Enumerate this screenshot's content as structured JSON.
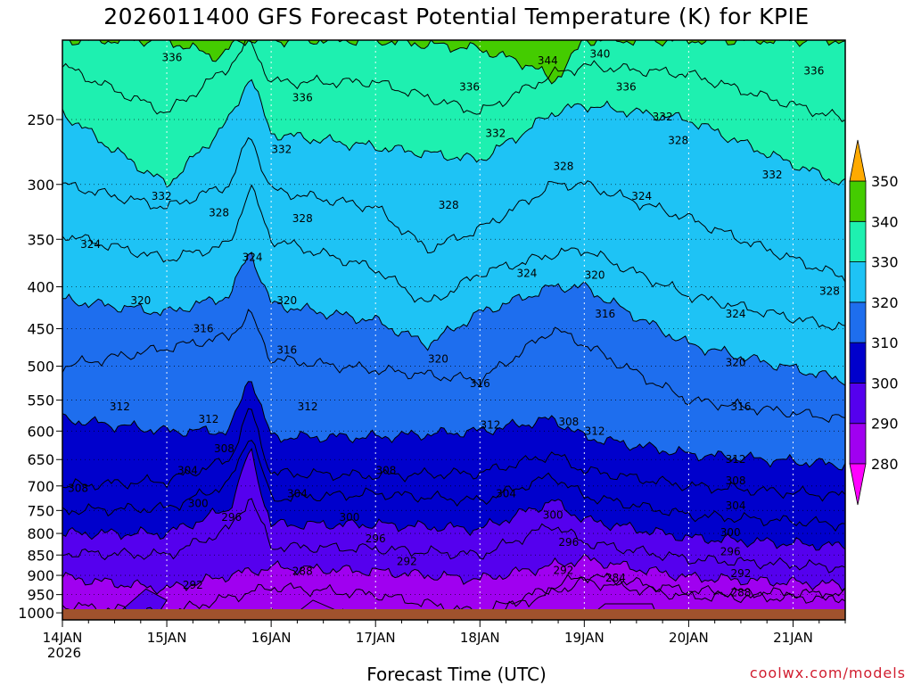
{
  "chart_data": {
    "type": "contour",
    "title": "2026011400 GFS Forecast Potential Temperature (K) for KPIE",
    "xlabel": "Forecast Time (UTC)",
    "ylabel": "",
    "credit": "coolwx.com/models",
    "x_ticks": [
      {
        "label": "14JAN",
        "sub": "2026",
        "day": 0
      },
      {
        "label": "15JAN",
        "sub": "",
        "day": 1
      },
      {
        "label": "16JAN",
        "sub": "",
        "day": 2
      },
      {
        "label": "17JAN",
        "sub": "",
        "day": 3
      },
      {
        "label": "18JAN",
        "sub": "",
        "day": 4
      },
      {
        "label": "19JAN",
        "sub": "",
        "day": 5
      },
      {
        "label": "20JAN",
        "sub": "",
        "day": 6
      },
      {
        "label": "21JAN",
        "sub": "",
        "day": 7
      }
    ],
    "xlim_days": [
      0,
      7.5
    ],
    "y_ticks": [
      250,
      300,
      350,
      400,
      450,
      500,
      550,
      600,
      650,
      700,
      750,
      800,
      850,
      900,
      950,
      1000
    ],
    "ylim_hpa": [
      200,
      1020
    ],
    "y_scale": "log-pressure",
    "grid": true,
    "colorbar": {
      "levels": [
        280,
        290,
        300,
        310,
        320,
        330,
        340,
        350
      ],
      "colors": [
        "#ff00ff",
        "#a000f0",
        "#5500ee",
        "#0000cc",
        "#1e6eee",
        "#1ec3f5",
        "#1ef0b0",
        "#44cc00",
        "#ffff00",
        "#ffaa00"
      ],
      "extend": "both"
    },
    "contour_interval": 4,
    "surface_color": "#a0522d",
    "isentropes": [
      {
        "theta": 284,
        "day": [
          0,
          1,
          2,
          3,
          4,
          5,
          6,
          7.5
        ],
        "hpa": [
          1005,
          1010,
          1005,
          1010,
          1010,
          915,
          955,
          960
        ]
      },
      {
        "theta": 288,
        "day": [
          0,
          1,
          2,
          3,
          4,
          5,
          6,
          7.5
        ],
        "hpa": [
          980,
          1000,
          930,
          950,
          1000,
          900,
          940,
          950
        ]
      },
      {
        "theta": 292,
        "day": [
          0,
          1,
          1.6,
          2,
          3,
          4,
          5,
          6,
          7.5
        ],
        "hpa": [
          905,
          935,
          900,
          880,
          890,
          910,
          860,
          905,
          925
        ]
      },
      {
        "theta": 296,
        "day": [
          0,
          1,
          1.6,
          1.8,
          2,
          3,
          4,
          4.7,
          5,
          6,
          7.5
        ],
        "hpa": [
          845,
          850,
          790,
          720,
          830,
          835,
          850,
          780,
          820,
          860,
          880
        ]
      },
      {
        "theta": 300,
        "day": [
          0,
          1,
          1.6,
          1.8,
          2,
          3,
          4,
          4.7,
          5,
          6,
          7.5
        ],
        "hpa": [
          800,
          800,
          745,
          630,
          780,
          780,
          790,
          730,
          770,
          810,
          830
        ]
      },
      {
        "theta": 304,
        "day": [
          0,
          1,
          1.6,
          1.8,
          2,
          3,
          4,
          4.7,
          5,
          6,
          7.5
        ],
        "hpa": [
          750,
          745,
          695,
          600,
          725,
          715,
          730,
          680,
          720,
          760,
          780
        ]
      },
      {
        "theta": 308,
        "day": [
          0,
          1,
          1.6,
          1.8,
          2,
          3,
          4,
          4.7,
          5,
          6,
          7.5
        ],
        "hpa": [
          700,
          690,
          650,
          560,
          675,
          680,
          675,
          640,
          670,
          700,
          720
        ]
      },
      {
        "theta": 312,
        "day": [
          0,
          1,
          1.6,
          1.8,
          2,
          3,
          4,
          4.7,
          5,
          6,
          7.5
        ],
        "hpa": [
          580,
          600,
          600,
          510,
          610,
          610,
          600,
          580,
          610,
          640,
          660
        ]
      },
      {
        "theta": 316,
        "day": [
          0,
          1,
          1.6,
          1.8,
          2,
          3,
          4,
          4.7,
          5,
          6,
          7.5
        ],
        "hpa": [
          500,
          475,
          460,
          430,
          490,
          505,
          520,
          450,
          470,
          550,
          580
        ]
      },
      {
        "theta": 320,
        "day": [
          0,
          1,
          1.6,
          1.8,
          2,
          3,
          3.5,
          4,
          4.7,
          5,
          6,
          7.5
        ],
        "hpa": [
          415,
          430,
          410,
          360,
          420,
          440,
          470,
          430,
          400,
          400,
          470,
          520
        ]
      },
      {
        "theta": 324,
        "day": [
          0,
          1,
          1.6,
          1.8,
          2,
          3,
          3.5,
          4,
          4.7,
          5,
          6,
          7.5
        ],
        "hpa": [
          345,
          370,
          355,
          300,
          350,
          380,
          420,
          385,
          365,
          360,
          410,
          450
        ]
      },
      {
        "theta": 328,
        "day": [
          0,
          1,
          1.6,
          1.8,
          2,
          3,
          3.5,
          4,
          4.7,
          5,
          6,
          7.5
        ],
        "hpa": [
          300,
          320,
          300,
          260,
          305,
          320,
          360,
          340,
          300,
          300,
          330,
          390
        ]
      },
      {
        "theta": 332,
        "day": [
          0,
          1,
          1.6,
          1.8,
          2,
          3,
          4,
          4.7,
          5,
          6,
          7.5
        ],
        "hpa": [
          245,
          300,
          250,
          220,
          260,
          270,
          280,
          245,
          240,
          250,
          300
        ]
      },
      {
        "theta": 336,
        "day": [
          0,
          1,
          1.6,
          1.8,
          2,
          3,
          4,
          4.7,
          5,
          6,
          7.5
        ],
        "hpa": [
          215,
          245,
          215,
          200,
          225,
          225,
          245,
          220,
          215,
          220,
          250
        ]
      },
      {
        "theta": 340,
        "day": [
          0,
          1,
          1.5,
          1.7,
          1.8,
          2,
          3,
          4,
          4.5,
          4.7,
          5,
          6,
          7.5
        ],
        "hpa": [
          200,
          200,
          210,
          200,
          200,
          200,
          200,
          205,
          215,
          225,
          200,
          200,
          200
        ]
      }
    ],
    "contour_labels": [
      {
        "text": "336",
        "day": 1.05,
        "hpa": 210
      },
      {
        "text": "336",
        "day": 2.3,
        "hpa": 235
      },
      {
        "text": "336",
        "day": 3.9,
        "hpa": 228
      },
      {
        "text": "344",
        "day": 4.65,
        "hpa": 212
      },
      {
        "text": "340",
        "day": 5.15,
        "hpa": 208
      },
      {
        "text": "336",
        "day": 5.4,
        "hpa": 228
      },
      {
        "text": "336",
        "day": 7.2,
        "hpa": 218
      },
      {
        "text": "332",
        "day": 2.1,
        "hpa": 272
      },
      {
        "text": "332",
        "day": 4.15,
        "hpa": 260
      },
      {
        "text": "332",
        "day": 5.75,
        "hpa": 248
      },
      {
        "text": "328",
        "day": 5.9,
        "hpa": 265
      },
      {
        "text": "328",
        "day": 4.8,
        "hpa": 285
      },
      {
        "text": "332",
        "day": 0.95,
        "hpa": 310
      },
      {
        "text": "332",
        "day": 6.8,
        "hpa": 292
      },
      {
        "text": "328",
        "day": 1.5,
        "hpa": 325
      },
      {
        "text": "328",
        "day": 2.3,
        "hpa": 330
      },
      {
        "text": "328",
        "day": 3.7,
        "hpa": 318
      },
      {
        "text": "324",
        "day": 5.55,
        "hpa": 310
      },
      {
        "text": "324",
        "day": 0.27,
        "hpa": 355
      },
      {
        "text": "324",
        "day": 1.82,
        "hpa": 368
      },
      {
        "text": "324",
        "day": 4.45,
        "hpa": 385
      },
      {
        "text": "320",
        "day": 5.1,
        "hpa": 387
      },
      {
        "text": "328",
        "day": 7.35,
        "hpa": 405
      },
      {
        "text": "320",
        "day": 0.75,
        "hpa": 416
      },
      {
        "text": "320",
        "day": 2.15,
        "hpa": 416
      },
      {
        "text": "316",
        "day": 1.35,
        "hpa": 450
      },
      {
        "text": "316",
        "day": 5.2,
        "hpa": 432
      },
      {
        "text": "324",
        "day": 6.45,
        "hpa": 432
      },
      {
        "text": "316",
        "day": 2.15,
        "hpa": 478
      },
      {
        "text": "320",
        "day": 3.6,
        "hpa": 490
      },
      {
        "text": "320",
        "day": 6.45,
        "hpa": 495
      },
      {
        "text": "316",
        "day": 4.0,
        "hpa": 525
      },
      {
        "text": "312",
        "day": 0.55,
        "hpa": 560
      },
      {
        "text": "312",
        "day": 1.4,
        "hpa": 580
      },
      {
        "text": "312",
        "day": 2.35,
        "hpa": 560
      },
      {
        "text": "312",
        "day": 4.1,
        "hpa": 590
      },
      {
        "text": "308",
        "day": 4.85,
        "hpa": 585
      },
      {
        "text": "312",
        "day": 5.1,
        "hpa": 600
      },
      {
        "text": "316",
        "day": 6.5,
        "hpa": 560
      },
      {
        "text": "308",
        "day": 1.55,
        "hpa": 630
      },
      {
        "text": "312",
        "day": 6.45,
        "hpa": 650
      },
      {
        "text": "304",
        "day": 1.2,
        "hpa": 670
      },
      {
        "text": "308",
        "day": 3.1,
        "hpa": 670
      },
      {
        "text": "308",
        "day": 0.15,
        "hpa": 705
      },
      {
        "text": "308",
        "day": 6.45,
        "hpa": 690
      },
      {
        "text": "304",
        "day": 2.25,
        "hpa": 715
      },
      {
        "text": "304",
        "day": 4.25,
        "hpa": 715
      },
      {
        "text": "300",
        "day": 1.3,
        "hpa": 735
      },
      {
        "text": "304",
        "day": 6.45,
        "hpa": 740
      },
      {
        "text": "296",
        "day": 1.62,
        "hpa": 765
      },
      {
        "text": "300",
        "day": 2.75,
        "hpa": 765
      },
      {
        "text": "300",
        "day": 4.7,
        "hpa": 760
      },
      {
        "text": "300",
        "day": 6.4,
        "hpa": 798
      },
      {
        "text": "296",
        "day": 3.0,
        "hpa": 812
      },
      {
        "text": "296",
        "day": 4.85,
        "hpa": 820
      },
      {
        "text": "296",
        "day": 6.4,
        "hpa": 842
      },
      {
        "text": "292",
        "day": 3.3,
        "hpa": 866
      },
      {
        "text": "292",
        "day": 4.8,
        "hpa": 888
      },
      {
        "text": "292",
        "day": 6.5,
        "hpa": 895
      },
      {
        "text": "284",
        "day": 5.3,
        "hpa": 907
      },
      {
        "text": "288",
        "day": 2.3,
        "hpa": 890
      },
      {
        "text": "292",
        "day": 1.25,
        "hpa": 925
      },
      {
        "text": "288",
        "day": 6.5,
        "hpa": 945
      }
    ],
    "blobs": [
      {
        "theta": 282,
        "day": [
          2.2,
          2.4,
          2.6,
          2.5,
          2.25
        ],
        "hpa": [
          1010,
          965,
          990,
          1015,
          1015
        ]
      },
      {
        "theta": 282,
        "day": [
          5.05,
          5.2,
          5.65,
          5.7,
          5.05
        ],
        "hpa": [
          1010,
          975,
          975,
          1010,
          1010
        ]
      },
      {
        "theta": 290,
        "day": [
          0.5,
          0.8,
          1.0,
          0.9,
          0.55
        ],
        "hpa": [
          1010,
          935,
          965,
          1010,
          1010
        ]
      }
    ]
  }
}
